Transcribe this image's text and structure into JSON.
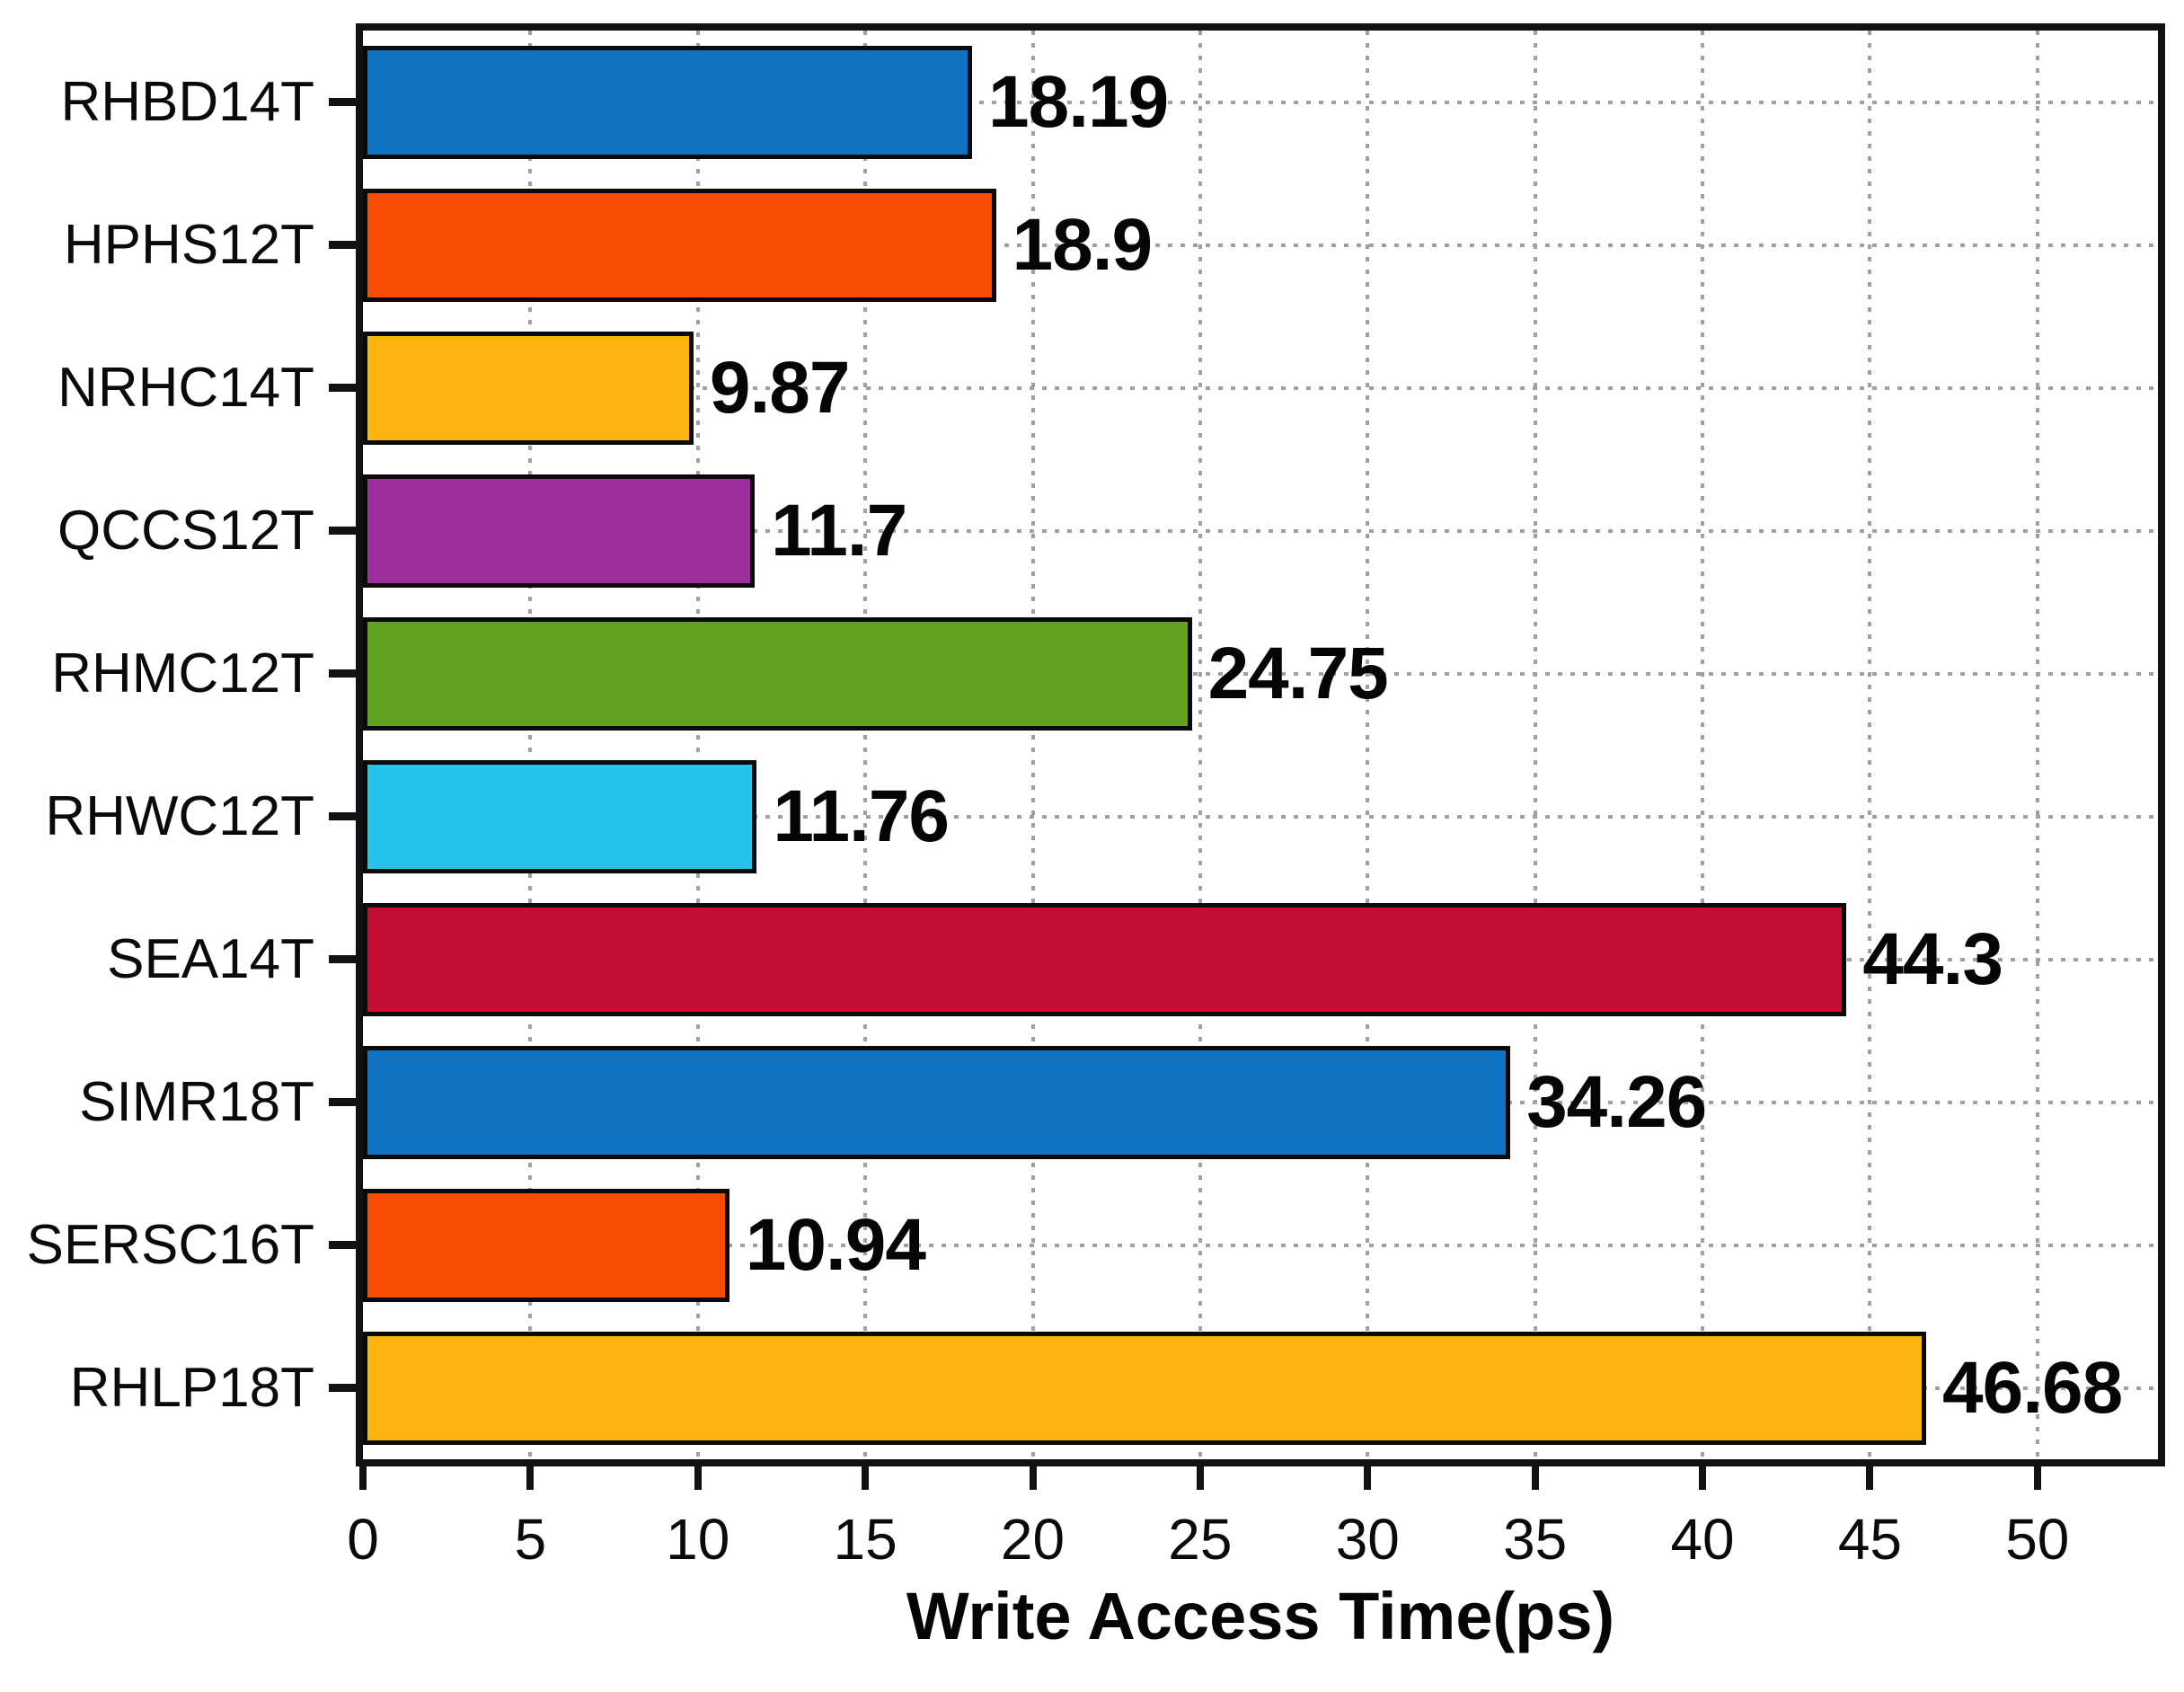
{
  "chart_data": {
    "type": "bar",
    "orientation": "horizontal",
    "title": "",
    "xlabel": "Write Access Time(ps)",
    "ylabel": "",
    "categories": [
      "RHBD14T",
      "HPHS12T",
      "NRHC14T",
      "QCCS12T",
      "RHMC12T",
      "RHWC12T",
      "SEA14T",
      "SIMR18T",
      "SERSC16T",
      "RHLP18T"
    ],
    "values": [
      18.19,
      18.9,
      9.87,
      11.7,
      24.75,
      11.76,
      44.3,
      34.26,
      10.94,
      46.68
    ],
    "value_labels": [
      "18.19",
      "18.9",
      "9.87",
      "11.7",
      "24.75",
      "11.76",
      "44.3",
      "34.26",
      "10.94",
      "46.68"
    ],
    "bar_colors": [
      "#0e73c2",
      "#f74c02",
      "#fcb40e",
      "#9f2c9c",
      "#60a41f",
      "#25c2ee",
      "#c50e33",
      "#0e73c2",
      "#f74c02",
      "#fcb40e"
    ],
    "bar_edge_color": "#0a0a0a",
    "xlim": [
      0,
      53.6
    ],
    "xticks": [
      0,
      5,
      10,
      15,
      20,
      25,
      30,
      35,
      40,
      45,
      50
    ],
    "xtick_labels": [
      "0",
      "5",
      "10",
      "15",
      "20",
      "25",
      "30",
      "35",
      "40",
      "45",
      "50"
    ],
    "grid": "dotted",
    "grid_color": "#a0a0a0",
    "frame_color": "#111111",
    "text_color": "#050505",
    "background_color": "#ffffff",
    "legend": "none"
  }
}
